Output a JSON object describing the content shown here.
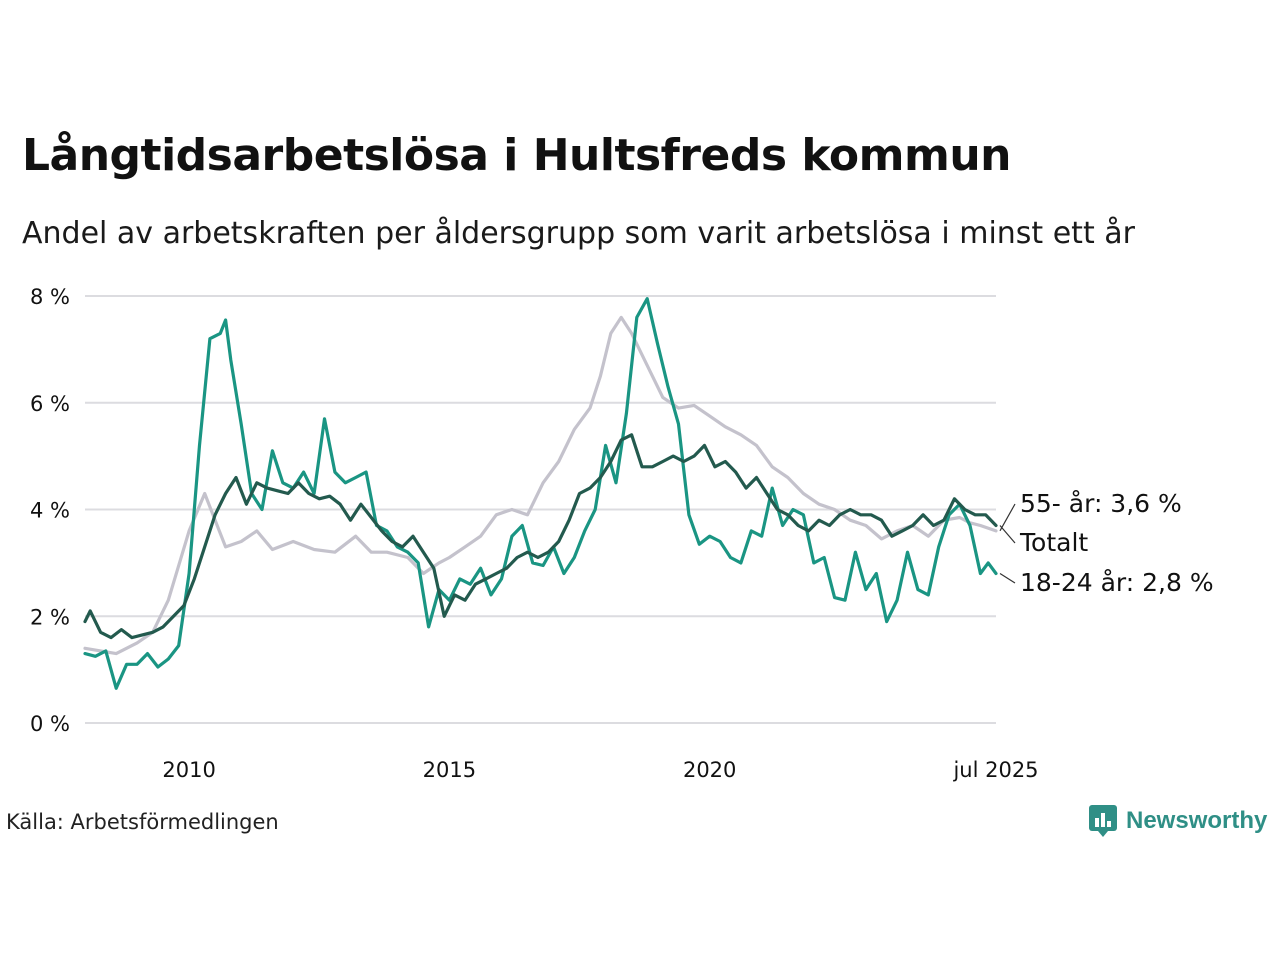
{
  "title": "Långtidsarbetslösa i Hultsfreds kommun",
  "subtitle": "Andel av arbetskraften per åldersgrupp som varit arbetslösa i minst ett år",
  "source": "Källa: Arbetsförmedlingen",
  "brand": "Newsworthy",
  "brand_color": "#2f8f86",
  "chart_data": {
    "type": "line",
    "ylim": [
      0,
      8
    ],
    "y_ticks": [
      0,
      2,
      4,
      6,
      8
    ],
    "y_tick_labels": [
      "0 %",
      "2 %",
      "4 %",
      "6 %",
      "8 %"
    ],
    "x_ticks": [
      2010,
      2015,
      2020,
      2025.5
    ],
    "x_tick_labels": [
      "2010",
      "2015",
      "2020",
      "jul 2025"
    ],
    "xlim": [
      2008.0,
      2025.5
    ],
    "grid": true,
    "end_labels": {
      "age55": "55- år: 3,6 %",
      "total": "Totalt",
      "youth": "18-24 år: 2,8 %"
    },
    "series": [
      {
        "key": "age55",
        "color": "#c4c2cc",
        "points": [
          [
            2008.0,
            1.4
          ],
          [
            2008.3,
            1.35
          ],
          [
            2008.6,
            1.3
          ],
          [
            2009.0,
            1.5
          ],
          [
            2009.3,
            1.7
          ],
          [
            2009.6,
            2.3
          ],
          [
            2010.0,
            3.6
          ],
          [
            2010.3,
            4.3
          ],
          [
            2010.5,
            3.8
          ],
          [
            2010.7,
            3.3
          ],
          [
            2011.0,
            3.4
          ],
          [
            2011.3,
            3.6
          ],
          [
            2011.6,
            3.25
          ],
          [
            2012.0,
            3.4
          ],
          [
            2012.4,
            3.25
          ],
          [
            2012.8,
            3.2
          ],
          [
            2013.2,
            3.5
          ],
          [
            2013.5,
            3.2
          ],
          [
            2013.8,
            3.2
          ],
          [
            2014.2,
            3.1
          ],
          [
            2014.5,
            2.8
          ],
          [
            2014.8,
            3.0
          ],
          [
            2015.0,
            3.1
          ],
          [
            2015.3,
            3.3
          ],
          [
            2015.6,
            3.5
          ],
          [
            2015.9,
            3.9
          ],
          [
            2016.2,
            4.0
          ],
          [
            2016.5,
            3.9
          ],
          [
            2016.8,
            4.5
          ],
          [
            2017.1,
            4.9
          ],
          [
            2017.4,
            5.5
          ],
          [
            2017.7,
            5.9
          ],
          [
            2017.9,
            6.5
          ],
          [
            2018.1,
            7.3
          ],
          [
            2018.3,
            7.6
          ],
          [
            2018.5,
            7.3
          ],
          [
            2018.8,
            6.7
          ],
          [
            2019.1,
            6.1
          ],
          [
            2019.4,
            5.9
          ],
          [
            2019.7,
            5.95
          ],
          [
            2020.0,
            5.75
          ],
          [
            2020.3,
            5.55
          ],
          [
            2020.6,
            5.4
          ],
          [
            2020.9,
            5.2
          ],
          [
            2021.2,
            4.8
          ],
          [
            2021.5,
            4.6
          ],
          [
            2021.8,
            4.3
          ],
          [
            2022.1,
            4.1
          ],
          [
            2022.4,
            4.0
          ],
          [
            2022.7,
            3.8
          ],
          [
            2023.0,
            3.7
          ],
          [
            2023.3,
            3.45
          ],
          [
            2023.6,
            3.6
          ],
          [
            2023.9,
            3.7
          ],
          [
            2024.2,
            3.5
          ],
          [
            2024.5,
            3.8
          ],
          [
            2024.8,
            3.85
          ],
          [
            2025.0,
            3.75
          ],
          [
            2025.2,
            3.7
          ],
          [
            2025.5,
            3.6
          ]
        ]
      },
      {
        "key": "youth",
        "color": "#1a9583",
        "points": [
          [
            2008.0,
            1.3
          ],
          [
            2008.2,
            1.25
          ],
          [
            2008.4,
            1.35
          ],
          [
            2008.6,
            0.65
          ],
          [
            2008.8,
            1.1
          ],
          [
            2009.0,
            1.1
          ],
          [
            2009.2,
            1.3
          ],
          [
            2009.4,
            1.05
          ],
          [
            2009.6,
            1.2
          ],
          [
            2009.8,
            1.45
          ],
          [
            2010.0,
            2.8
          ],
          [
            2010.2,
            5.2
          ],
          [
            2010.4,
            7.2
          ],
          [
            2010.6,
            7.3
          ],
          [
            2010.7,
            7.55
          ],
          [
            2010.8,
            6.8
          ],
          [
            2011.0,
            5.6
          ],
          [
            2011.2,
            4.3
          ],
          [
            2011.4,
            4.0
          ],
          [
            2011.6,
            5.1
          ],
          [
            2011.8,
            4.5
          ],
          [
            2012.0,
            4.4
          ],
          [
            2012.2,
            4.7
          ],
          [
            2012.4,
            4.3
          ],
          [
            2012.6,
            5.7
          ],
          [
            2012.8,
            4.7
          ],
          [
            2013.0,
            4.5
          ],
          [
            2013.2,
            4.6
          ],
          [
            2013.4,
            4.7
          ],
          [
            2013.6,
            3.7
          ],
          [
            2013.8,
            3.6
          ],
          [
            2014.0,
            3.3
          ],
          [
            2014.2,
            3.2
          ],
          [
            2014.4,
            3.0
          ],
          [
            2014.6,
            1.8
          ],
          [
            2014.8,
            2.5
          ],
          [
            2015.0,
            2.3
          ],
          [
            2015.2,
            2.7
          ],
          [
            2015.4,
            2.6
          ],
          [
            2015.6,
            2.9
          ],
          [
            2015.8,
            2.4
          ],
          [
            2016.0,
            2.7
          ],
          [
            2016.2,
            3.5
          ],
          [
            2016.4,
            3.7
          ],
          [
            2016.6,
            3.0
          ],
          [
            2016.8,
            2.95
          ],
          [
            2017.0,
            3.3
          ],
          [
            2017.2,
            2.8
          ],
          [
            2017.4,
            3.1
          ],
          [
            2017.6,
            3.6
          ],
          [
            2017.8,
            4.0
          ],
          [
            2018.0,
            5.2
          ],
          [
            2018.2,
            4.5
          ],
          [
            2018.4,
            5.8
          ],
          [
            2018.6,
            7.6
          ],
          [
            2018.8,
            7.95
          ],
          [
            2019.0,
            7.1
          ],
          [
            2019.2,
            6.3
          ],
          [
            2019.4,
            5.6
          ],
          [
            2019.6,
            3.9
          ],
          [
            2019.8,
            3.35
          ],
          [
            2020.0,
            3.5
          ],
          [
            2020.2,
            3.4
          ],
          [
            2020.4,
            3.1
          ],
          [
            2020.6,
            3.0
          ],
          [
            2020.8,
            3.6
          ],
          [
            2021.0,
            3.5
          ],
          [
            2021.2,
            4.4
          ],
          [
            2021.4,
            3.7
          ],
          [
            2021.6,
            4.0
          ],
          [
            2021.8,
            3.9
          ],
          [
            2022.0,
            3.0
          ],
          [
            2022.2,
            3.1
          ],
          [
            2022.4,
            2.35
          ],
          [
            2022.6,
            2.3
          ],
          [
            2022.8,
            3.2
          ],
          [
            2023.0,
            2.5
          ],
          [
            2023.2,
            2.8
          ],
          [
            2023.4,
            1.9
          ],
          [
            2023.6,
            2.3
          ],
          [
            2023.8,
            3.2
          ],
          [
            2024.0,
            2.5
          ],
          [
            2024.2,
            2.4
          ],
          [
            2024.4,
            3.3
          ],
          [
            2024.6,
            3.9
          ],
          [
            2024.8,
            4.1
          ],
          [
            2025.0,
            3.7
          ],
          [
            2025.2,
            2.8
          ],
          [
            2025.35,
            3.0
          ],
          [
            2025.5,
            2.8
          ]
        ]
      },
      {
        "key": "total",
        "color": "#235a4e",
        "points": [
          [
            2008.0,
            1.9
          ],
          [
            2008.1,
            2.1
          ],
          [
            2008.3,
            1.7
          ],
          [
            2008.5,
            1.6
          ],
          [
            2008.7,
            1.75
          ],
          [
            2008.9,
            1.6
          ],
          [
            2009.1,
            1.65
          ],
          [
            2009.3,
            1.7
          ],
          [
            2009.5,
            1.8
          ],
          [
            2009.7,
            2.0
          ],
          [
            2009.9,
            2.2
          ],
          [
            2010.1,
            2.7
          ],
          [
            2010.3,
            3.3
          ],
          [
            2010.5,
            3.9
          ],
          [
            2010.7,
            4.3
          ],
          [
            2010.9,
            4.6
          ],
          [
            2011.1,
            4.1
          ],
          [
            2011.3,
            4.5
          ],
          [
            2011.5,
            4.4
          ],
          [
            2011.7,
            4.35
          ],
          [
            2011.9,
            4.3
          ],
          [
            2012.1,
            4.5
          ],
          [
            2012.3,
            4.3
          ],
          [
            2012.5,
            4.2
          ],
          [
            2012.7,
            4.25
          ],
          [
            2012.9,
            4.1
          ],
          [
            2013.1,
            3.8
          ],
          [
            2013.3,
            4.1
          ],
          [
            2013.5,
            3.85
          ],
          [
            2013.7,
            3.6
          ],
          [
            2013.9,
            3.4
          ],
          [
            2014.1,
            3.3
          ],
          [
            2014.3,
            3.5
          ],
          [
            2014.5,
            3.2
          ],
          [
            2014.7,
            2.9
          ],
          [
            2014.9,
            2.0
          ],
          [
            2015.1,
            2.4
          ],
          [
            2015.3,
            2.3
          ],
          [
            2015.5,
            2.6
          ],
          [
            2015.7,
            2.7
          ],
          [
            2015.9,
            2.8
          ],
          [
            2016.1,
            2.9
          ],
          [
            2016.3,
            3.1
          ],
          [
            2016.5,
            3.2
          ],
          [
            2016.7,
            3.1
          ],
          [
            2016.9,
            3.2
          ],
          [
            2017.1,
            3.4
          ],
          [
            2017.3,
            3.8
          ],
          [
            2017.5,
            4.3
          ],
          [
            2017.7,
            4.4
          ],
          [
            2017.9,
            4.6
          ],
          [
            2018.1,
            4.9
          ],
          [
            2018.3,
            5.3
          ],
          [
            2018.5,
            5.4
          ],
          [
            2018.7,
            4.8
          ],
          [
            2018.9,
            4.8
          ],
          [
            2019.1,
            4.9
          ],
          [
            2019.3,
            5.0
          ],
          [
            2019.5,
            4.9
          ],
          [
            2019.7,
            5.0
          ],
          [
            2019.9,
            5.2
          ],
          [
            2020.1,
            4.8
          ],
          [
            2020.3,
            4.9
          ],
          [
            2020.5,
            4.7
          ],
          [
            2020.7,
            4.4
          ],
          [
            2020.9,
            4.6
          ],
          [
            2021.1,
            4.3
          ],
          [
            2021.3,
            4.0
          ],
          [
            2021.5,
            3.9
          ],
          [
            2021.7,
            3.7
          ],
          [
            2021.9,
            3.6
          ],
          [
            2022.1,
            3.8
          ],
          [
            2022.3,
            3.7
          ],
          [
            2022.5,
            3.9
          ],
          [
            2022.7,
            4.0
          ],
          [
            2022.9,
            3.9
          ],
          [
            2023.1,
            3.9
          ],
          [
            2023.3,
            3.8
          ],
          [
            2023.5,
            3.5
          ],
          [
            2023.7,
            3.6
          ],
          [
            2023.9,
            3.7
          ],
          [
            2024.1,
            3.9
          ],
          [
            2024.3,
            3.7
          ],
          [
            2024.5,
            3.8
          ],
          [
            2024.7,
            4.2
          ],
          [
            2024.9,
            4.0
          ],
          [
            2025.1,
            3.9
          ],
          [
            2025.3,
            3.9
          ],
          [
            2025.5,
            3.7
          ]
        ]
      }
    ]
  }
}
